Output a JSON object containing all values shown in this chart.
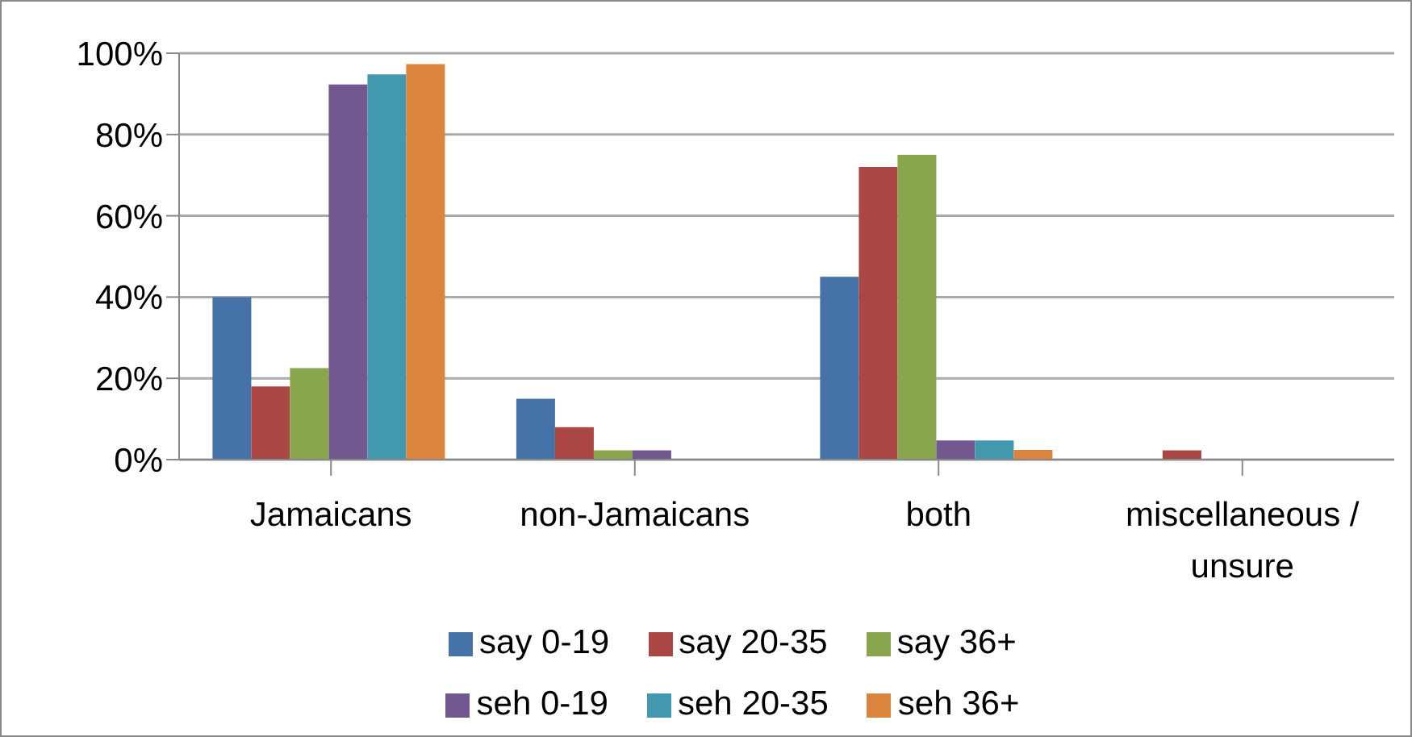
{
  "chart_data": {
    "type": "bar",
    "categories": [
      "Jamaicans",
      "non-Jamaicans",
      "both",
      "miscellaneous / unsure"
    ],
    "series": [
      {
        "name": "say 0-19",
        "color": "#4572a7",
        "values": [
          40,
          15,
          45,
          0
        ]
      },
      {
        "name": "say 20-35",
        "color": "#aa4643",
        "values": [
          18,
          8,
          72,
          2.3
        ]
      },
      {
        "name": "say 36+",
        "color": "#89a54e",
        "values": [
          22.5,
          2.3,
          75,
          0
        ]
      },
      {
        "name": "seh 0-19",
        "color": "#71588f",
        "values": [
          92.3,
          2.3,
          4.7,
          0
        ]
      },
      {
        "name": "seh 20-35",
        "color": "#4198af",
        "values": [
          94.8,
          0,
          4.7,
          0
        ]
      },
      {
        "name": "seh 36+",
        "color": "#db843d",
        "values": [
          97.3,
          0,
          2.4,
          0
        ]
      }
    ],
    "ylim": [
      0,
      100
    ],
    "yticks": [
      {
        "value": 0,
        "label": "0%"
      },
      {
        "value": 20,
        "label": "20%"
      },
      {
        "value": 40,
        "label": "40%"
      },
      {
        "value": 60,
        "label": "60%"
      },
      {
        "value": 80,
        "label": "80%"
      },
      {
        "value": 100,
        "label": "100%"
      }
    ],
    "grid": "y",
    "legend": "bottom"
  }
}
